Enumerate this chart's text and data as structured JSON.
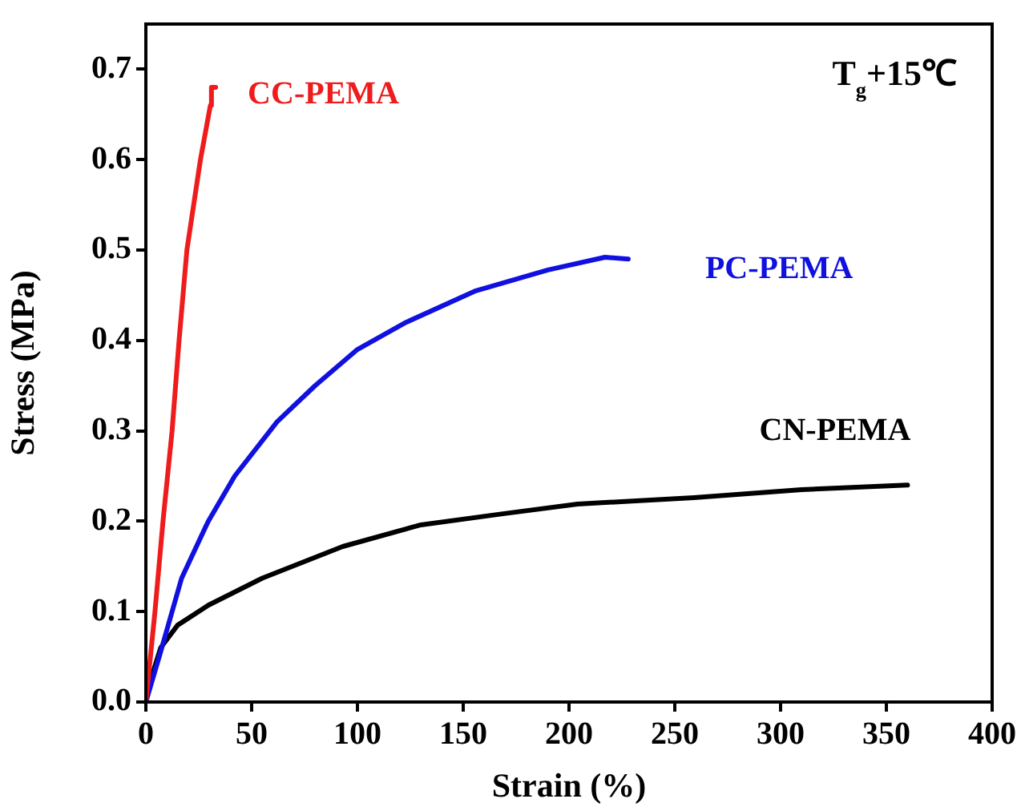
{
  "chart_data": {
    "type": "line",
    "xlabel": "Strain (%)",
    "ylabel": "Stress (MPa)",
    "xlim": [
      0,
      400
    ],
    "xticks": [
      0,
      50,
      100,
      150,
      200,
      250,
      300,
      350,
      400
    ],
    "ylim": [
      0,
      0.75
    ],
    "yticks": [
      {
        "value": 0,
        "label": "0.0"
      },
      {
        "value": 0.1,
        "label": "0.1"
      },
      {
        "value": 0.2,
        "label": "0.2"
      },
      {
        "value": 0.3,
        "label": "0.3"
      },
      {
        "value": 0.4,
        "label": "0.4"
      },
      {
        "value": 0.5,
        "label": "0.5"
      },
      {
        "value": 0.6,
        "label": "0.6"
      },
      {
        "value": 0.7,
        "label": "0.7"
      }
    ],
    "grid": false,
    "legend": false,
    "marker": "none",
    "line_style": "solid",
    "annotations": [
      "T$_{g}$+15℃"
    ],
    "series": [
      {
        "name": "CC-PEMA",
        "color": "#ee1c1c",
        "x": [
          0,
          4.3,
          8.1,
          12.4,
          15.7,
          19.4,
          25.8,
          30.5,
          31,
          33
        ],
        "values": [
          0,
          0.1,
          0.2,
          0.3,
          0.4,
          0.5,
          0.6,
          0.66,
          0.68,
          0.68
        ]
      },
      {
        "name": "PC-PEMA",
        "color": "#1010e0",
        "x": [
          0,
          6.8,
          16.9,
          29.5,
          42,
          62,
          80,
          100,
          123,
          156,
          190,
          217,
          228
        ],
        "values": [
          0,
          0.054,
          0.137,
          0.2,
          0.25,
          0.31,
          0.35,
          0.39,
          0.42,
          0.455,
          0.478,
          0.492,
          0.49
        ]
      },
      {
        "name": "CN-PEMA",
        "color": "#000000",
        "x": [
          0,
          3,
          7,
          15,
          29.5,
          55,
          93,
          130,
          168,
          204,
          259,
          310,
          360
        ],
        "values": [
          0,
          0.03,
          0.06,
          0.085,
          0.107,
          0.137,
          0.172,
          0.196,
          0.208,
          0.219,
          0.226,
          0.235,
          0.24
        ]
      }
    ]
  }
}
